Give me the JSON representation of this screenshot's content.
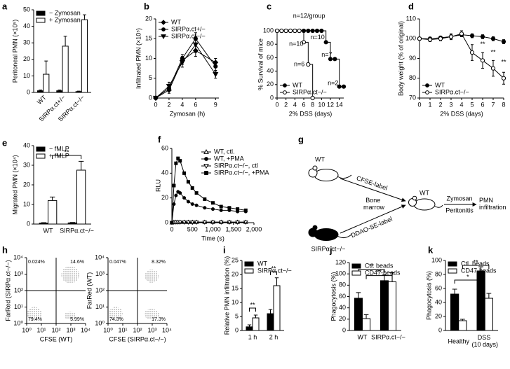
{
  "chart_data": [
    {
      "type": "bar",
      "label": "a",
      "ylabel": "Peritoneal PMN (×10⁵)",
      "categories": [
        "WT",
        "SIRPα.ct+/−",
        "SIRPα.ct−/−"
      ],
      "series": [
        {
          "name": "− Zymosan",
          "color": "#000000",
          "values": [
            1,
            1,
            0.5
          ],
          "errors": [
            0.5,
            0.5,
            0.3
          ]
        },
        {
          "name": "+ Zymosan",
          "color": "#ffffff",
          "values": [
            11,
            28,
            44
          ],
          "errors": [
            8,
            6,
            3
          ]
        }
      ],
      "ylim": [
        0,
        50
      ],
      "yticks": [
        0,
        10,
        20,
        30,
        40,
        50
      ],
      "legend": "upper left"
    },
    {
      "type": "line",
      "label": "b",
      "xlabel": "Zymosan (h)",
      "ylabel": "Infiltrated PMN (×10⁵)",
      "x": [
        0,
        2,
        4,
        6,
        9
      ],
      "xlim": [
        0,
        9.5
      ],
      "xticks": [
        0,
        2,
        4,
        6,
        9
      ],
      "ylim": [
        0,
        20
      ],
      "yticks": [
        0,
        5,
        10,
        15,
        20
      ],
      "legend": "upper left",
      "series": [
        {
          "name": "WT",
          "color": "#000000",
          "marker": "diamond",
          "values": [
            0,
            2,
            9.5,
            12,
            9
          ],
          "errors": [
            0.3,
            0.8,
            1,
            1.5,
            1
          ]
        },
        {
          "name": "SIRPα.ct+/−",
          "color": "#000000",
          "marker": "circle",
          "values": [
            0,
            2.5,
            10,
            15,
            8
          ],
          "errors": [
            0.3,
            0.6,
            1,
            1.5,
            1.2
          ]
        },
        {
          "name": "SIRPα.ct−/−",
          "color": "#000000",
          "marker": "triangle-down",
          "values": [
            0,
            3,
            9,
            13.5,
            6
          ],
          "errors": [
            0.3,
            1,
            1.2,
            2,
            1
          ]
        }
      ]
    },
    {
      "type": "line",
      "step": true,
      "label": "c",
      "xlabel": "2% DSS (days)",
      "ylabel": "% Survival of mice",
      "x": [
        0,
        1,
        2,
        3,
        4,
        5,
        6,
        7,
        8,
        9,
        10,
        11,
        12,
        13,
        14,
        15
      ],
      "xlim": [
        0,
        15
      ],
      "xticks": [
        0,
        2,
        4,
        6,
        8,
        10,
        12,
        14
      ],
      "ylim": [
        0,
        100
      ],
      "yticks": [
        0,
        20,
        40,
        60,
        80,
        100
      ],
      "legend": "lower left",
      "annotations": [
        "n=12/group",
        "n=10",
        "n=6",
        "n=10",
        "n=7",
        "n=2"
      ],
      "series": [
        {
          "name": "WT",
          "color": "#000000",
          "marker": "circle",
          "values": [
            100,
            100,
            100,
            100,
            100,
            100,
            100,
            100,
            100,
            100,
            100,
            83,
            58,
            58,
            17,
            17
          ]
        },
        {
          "name": "SIRPα.ct−/−",
          "color": "#000000",
          "marker": "circle-open",
          "values": [
            100,
            100,
            100,
            100,
            100,
            100,
            83,
            50,
            0,
            null,
            null,
            null,
            null,
            null,
            null,
            null
          ]
        }
      ]
    },
    {
      "type": "line",
      "label": "d",
      "xlabel": "2% DSS (days)",
      "ylabel": "Body weight (% of original)",
      "x": [
        0,
        1,
        2,
        3,
        4,
        5,
        6,
        7,
        8
      ],
      "xlim": [
        0,
        8
      ],
      "xticks": [
        0,
        1,
        2,
        3,
        4,
        5,
        6,
        7,
        8
      ],
      "ylim": [
        70,
        110
      ],
      "yticks": [
        70,
        80,
        90,
        100,
        110
      ],
      "legend": "lower left",
      "annotations": [
        "**",
        "**",
        "**"
      ],
      "series": [
        {
          "name": "WT",
          "color": "#000000",
          "marker": "circle",
          "values": [
            100,
            100,
            100.5,
            101,
            102,
            101.5,
            101,
            100,
            98.5
          ],
          "errors": [
            0.5,
            0.8,
            0.8,
            1,
            1,
            1,
            1,
            1,
            1
          ]
        },
        {
          "name": "SIRPα.ct−/−",
          "color": "#000000",
          "marker": "circle-open",
          "values": [
            100,
            99.5,
            100,
            101,
            102.5,
            93,
            89,
            85,
            80
          ],
          "errors": [
            0.5,
            1,
            1,
            1.5,
            1.5,
            4,
            4,
            4,
            3
          ]
        }
      ]
    },
    {
      "type": "bar",
      "label": "e",
      "ylabel": "Migrated PMN (×10⁴)",
      "categories": [
        "WT",
        "SIRPα.ct−/−"
      ],
      "series": [
        {
          "name": "− fMLP",
          "color": "#000000",
          "values": [
            0.5,
            0.6
          ],
          "errors": [
            0.2,
            0.2
          ]
        },
        {
          "name": "+ fMLP",
          "color": "#ffffff",
          "values": [
            12,
            27.5
          ],
          "errors": [
            1.8,
            4.5
          ]
        }
      ],
      "ylim": [
        0,
        40
      ],
      "yticks": [
        0,
        10,
        20,
        30,
        40
      ],
      "legend": "upper left",
      "annotations": [
        "**"
      ]
    },
    {
      "type": "line",
      "label": "f",
      "xlabel": "Time (s)",
      "ylabel": "RLU",
      "x": [
        0,
        50,
        100,
        150,
        200,
        300,
        400,
        500,
        600,
        800,
        1000,
        1200,
        1400,
        1600,
        1800
      ],
      "xlim": [
        0,
        2000
      ],
      "xticks": [
        0,
        500,
        {
          "value": 1000,
          "label": "1,000"
        },
        {
          "value": 1500,
          "label": "1,500"
        },
        {
          "value": 2000,
          "label": "2,000"
        }
      ],
      "ylim": [
        0,
        60
      ],
      "yticks": [
        0,
        20,
        40,
        60
      ],
      "legend": "upper right",
      "series": [
        {
          "name": "WT, ctl.",
          "color": "#000000",
          "marker": "triangle-open",
          "values": [
            0,
            0.5,
            0.5,
            0.5,
            0.5,
            0.5,
            0.5,
            0.5,
            0.5,
            0.5,
            0.5,
            0.5,
            0.5,
            0.5,
            0.5
          ]
        },
        {
          "name": "WT, +PMA",
          "color": "#000000",
          "marker": "circle",
          "values": [
            0,
            15,
            22,
            25,
            24,
            20,
            17,
            15,
            14,
            12,
            11,
            10,
            10,
            9,
            9
          ]
        },
        {
          "name": "SIRPα.ct−/−, ctl",
          "color": "#000000",
          "marker": "triangle-down-open",
          "values": [
            0,
            0.3,
            0.3,
            0.3,
            0.3,
            0.3,
            0.3,
            0.3,
            0.3,
            0.3,
            0.3,
            0.3,
            0.3,
            0.3,
            0.3
          ]
        },
        {
          "name": "SIRPα.ct−/−, +PMA",
          "color": "#000000",
          "marker": "square",
          "values": [
            0,
            30,
            48,
            52,
            50,
            40,
            33,
            28,
            24,
            19,
            16,
            13,
            12,
            11,
            10
          ]
        }
      ]
    },
    {
      "type": "diagram",
      "label": "g",
      "donor_top": "WT",
      "label_top": "CFSE-label",
      "source": "Bone marrow",
      "donor_bottom": "SIRPα.ct−/−",
      "label_bottom": "DDAO-SE-label",
      "recipient": "WT",
      "stimulus": "Zymosan",
      "model": "Peritonitis",
      "readout": "PMN infiltration"
    },
    {
      "type": "flow",
      "label": "h",
      "xlabel": "CFSE (WT)",
      "ylabel": "FarRed (SIRPα.ct−/−)",
      "xlog": true,
      "ylog": true,
      "xlim": [
        1,
        10000
      ],
      "ylim": [
        1,
        10000
      ],
      "xticks": [
        {
          "value": 1,
          "label": "10⁰"
        },
        {
          "value": 10,
          "label": "10¹"
        },
        {
          "value": 100,
          "label": "10²"
        },
        {
          "value": 1000,
          "label": "10³"
        },
        {
          "value": 10000,
          "label": "10⁴"
        }
      ],
      "yticks": [
        {
          "value": 1,
          "label": "10⁰"
        },
        {
          "value": 10,
          "label": "10¹"
        },
        {
          "value": 100,
          "label": "10²"
        },
        {
          "value": 1000,
          "label": "10³"
        },
        {
          "value": 10000,
          "label": "10⁴"
        }
      ],
      "quadrants": [
        "0.024%",
        "14.6%",
        "79.4%",
        "5.99%"
      ]
    },
    {
      "type": "flow",
      "xlabel": "CFSE (SIRPα.ct−/−)",
      "ylabel": "FarRed (WT)",
      "xlog": true,
      "ylog": true,
      "xlim": [
        1,
        10000
      ],
      "ylim": [
        1,
        10000
      ],
      "xticks": [
        {
          "value": 1,
          "label": "10⁰"
        },
        {
          "value": 10,
          "label": "10¹"
        },
        {
          "value": 100,
          "label": "10²"
        },
        {
          "value": 1000,
          "label": "10³"
        },
        {
          "value": 10000,
          "label": "10⁴"
        }
      ],
      "yticks": [
        {
          "value": 1,
          "label": "10⁰"
        },
        {
          "value": 10,
          "label": "10¹"
        },
        {
          "value": 100,
          "label": "10²"
        },
        {
          "value": 1000,
          "label": "10³"
        },
        {
          "value": 10000,
          "label": "10⁴"
        }
      ],
      "quadrants": [
        "0.047%",
        "8.32%",
        "74.3%",
        "17.3%"
      ]
    },
    {
      "type": "bar",
      "label": "i",
      "ylabel": "Relative PMN infiltration (%)",
      "categories": [
        "1 h",
        "2 h"
      ],
      "series": [
        {
          "name": "WT",
          "color": "#000000",
          "values": [
            1.3,
            6
          ],
          "errors": [
            0.7,
            1.5
          ]
        },
        {
          "name": "SIRPα.ct−/−",
          "color": "#ffffff",
          "values": [
            4.5,
            16
          ],
          "errors": [
            1,
            2.8
          ]
        }
      ],
      "ylim": [
        0,
        25
      ],
      "yticks": [
        0,
        5,
        10,
        15,
        20,
        25
      ],
      "legend": "upper left",
      "annotations": [
        "**",
        "**"
      ]
    },
    {
      "type": "bar",
      "label": "j",
      "ylabel": "Phagocytosis (%)",
      "categories": [
        "WT",
        "SIRPα.ct−/−"
      ],
      "series": [
        {
          "name": "Ctl. beads",
          "color": "#000000",
          "values": [
            57,
            88
          ],
          "errors": [
            10,
            10
          ]
        },
        {
          "name": "CD47-beads",
          "color": "#ffffff",
          "values": [
            21,
            86
          ],
          "errors": [
            7,
            16
          ]
        }
      ],
      "ylim": [
        0,
        120
      ],
      "yticks": [
        0,
        20,
        40,
        60,
        80,
        100,
        120
      ],
      "legend": "upper left",
      "annotations": [
        "**",
        "**"
      ]
    },
    {
      "type": "bar",
      "label": "k",
      "ylabel": "Phagocytosis (%)",
      "categories": [
        "Healthy",
        "DSS (10 days)"
      ],
      "series": [
        {
          "name": "Ctl. beads",
          "color": "#000000",
          "values": [
            52,
            85
          ],
          "errors": [
            7,
            6
          ]
        },
        {
          "name": "CD47-beads",
          "color": "#ffffff",
          "values": [
            14,
            46
          ],
          "errors": [
            2,
            7
          ]
        }
      ],
      "ylim": [
        0,
        100
      ],
      "yticks": [
        0,
        20,
        40,
        60,
        80,
        100
      ],
      "legend": "upper left",
      "annotations": [
        "*",
        "**"
      ]
    }
  ]
}
